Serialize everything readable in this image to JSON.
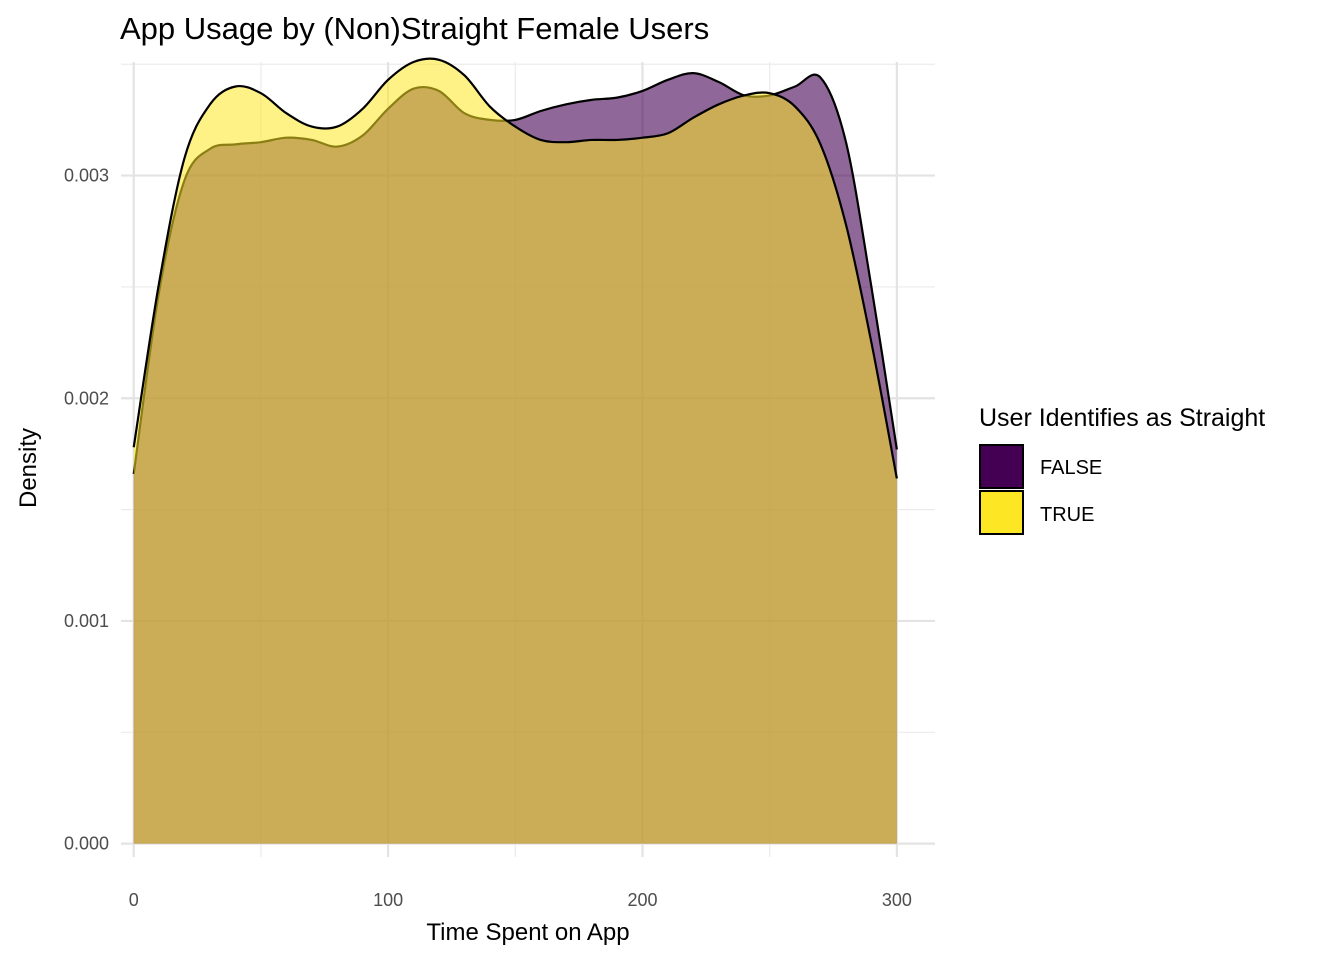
{
  "chart_data": {
    "type": "area",
    "title": "App Usage by (Non)Straight Female Users",
    "xlabel": "Time Spent on App",
    "ylabel": "Density",
    "xlim": [
      -5,
      315
    ],
    "ylim": [
      -6e-05,
      0.00351
    ],
    "x_ticks": [
      0,
      100,
      200,
      300
    ],
    "x_tick_labels": [
      "0",
      "100",
      "200",
      "300"
    ],
    "y_ticks": [
      0,
      0.001,
      0.002,
      0.003
    ],
    "y_tick_labels": [
      "0.000",
      "0.001",
      "0.002",
      "0.003"
    ],
    "grid": true,
    "legend": {
      "title": "User Identifies as Straight",
      "placement": "right"
    },
    "series": [
      {
        "name": "FALSE",
        "fill": "#440154",
        "fill_opacity": 0.6,
        "x": [
          0,
          10,
          20,
          30,
          40,
          50,
          60,
          70,
          80,
          90,
          100,
          110,
          120,
          130,
          140,
          150,
          160,
          170,
          180,
          190,
          200,
          210,
          220,
          230,
          240,
          250,
          260,
          270,
          280,
          290,
          300
        ],
        "values": [
          0.00166,
          0.00248,
          0.00298,
          0.00312,
          0.00314,
          0.00315,
          0.00317,
          0.00316,
          0.00313,
          0.00318,
          0.0033,
          0.00339,
          0.00338,
          0.00328,
          0.00325,
          0.00325,
          0.00329,
          0.00332,
          0.00334,
          0.00335,
          0.00338,
          0.00343,
          0.00346,
          0.00342,
          0.00336,
          0.00336,
          0.0034,
          0.00344,
          0.00315,
          0.0025,
          0.00177
        ]
      },
      {
        "name": "TRUE",
        "fill": "#fde725",
        "fill_opacity": 0.55,
        "x": [
          0,
          10,
          20,
          30,
          40,
          50,
          60,
          70,
          80,
          90,
          100,
          110,
          120,
          130,
          140,
          150,
          160,
          170,
          180,
          190,
          200,
          210,
          220,
          230,
          240,
          250,
          260,
          270,
          280,
          290,
          300
        ],
        "values": [
          0.00178,
          0.00252,
          0.00308,
          0.00332,
          0.0034,
          0.00337,
          0.00328,
          0.00322,
          0.00322,
          0.0033,
          0.00343,
          0.00351,
          0.00352,
          0.00345,
          0.00331,
          0.00322,
          0.00316,
          0.00315,
          0.00316,
          0.00316,
          0.00317,
          0.00319,
          0.00326,
          0.00332,
          0.00336,
          0.00337,
          0.00331,
          0.00314,
          0.00278,
          0.00225,
          0.00164
        ]
      }
    ]
  }
}
